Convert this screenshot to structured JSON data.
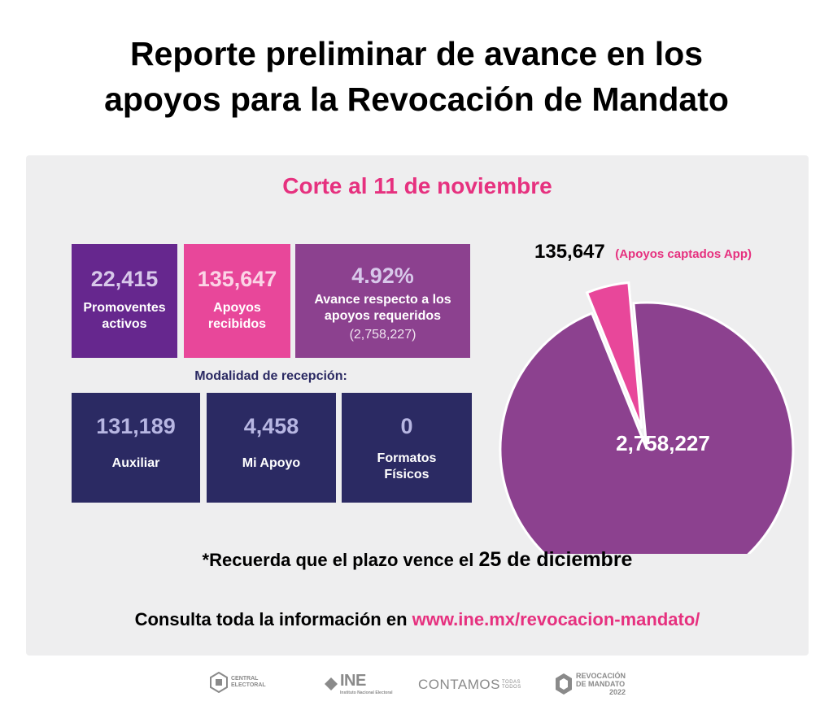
{
  "title_line1": "Reporte preliminar de avance en los",
  "title_line2": "apoyos para la Revocación de Mandato",
  "cut_date": "Corte al 11 de noviembre",
  "stats": {
    "promoventes_value": "22,415",
    "promoventes_label_1": "Promoventes",
    "promoventes_label_2": "activos",
    "apoyos_value": "135,647",
    "apoyos_label_1": "Apoyos",
    "apoyos_label_2": "recibidos",
    "avance_value": "4.92%",
    "avance_label_1": "Avance respecto a los",
    "avance_label_2": "apoyos requeridos",
    "avance_required": "(2,758,227)"
  },
  "modalidad_title": "Modalidad de recepción:",
  "modalidad": {
    "auxiliar_value": "131,189",
    "auxiliar_label": "Auxiliar",
    "miapoyo_value": "4,458",
    "miapoyo_label": "Mi Apoyo",
    "formatos_value": "0",
    "formatos_label_1": "Formatos",
    "formatos_label_2": "Físicos"
  },
  "chart_data": {
    "type": "pie",
    "slices": [
      {
        "label": "(Apoyos captados App)",
        "display": "135,647",
        "value": 135647,
        "color": "#e8479a",
        "exploded": true
      },
      {
        "label": "",
        "display": "2,758,227",
        "value": 2758227,
        "color": "#8c418f",
        "exploded": false
      }
    ]
  },
  "note_prefix": "*Recuerda que el plazo vence el ",
  "note_date": "25 de diciembre",
  "consult_prefix": "Consulta toda la información en ",
  "consult_url": "www.ine.mx/revocacion-mandato/",
  "footer": {
    "central_1": "CENTRAL",
    "central_2": "ELECTORAL",
    "ine_big": "INE",
    "ine_small": "Instituto Nacional Electoral",
    "contamos": "CONTAMOS",
    "contamos_small_1": "TODAS",
    "contamos_small_2": "TODOS",
    "revocacion_1": "REVOCACIÓN",
    "revocacion_2": "DE MANDATO",
    "revocacion_3": "2022"
  },
  "colors": {
    "pink": "#e6317f",
    "purple": "#8c418f",
    "dark_purple": "#66278e",
    "navy": "#2b2a63"
  }
}
